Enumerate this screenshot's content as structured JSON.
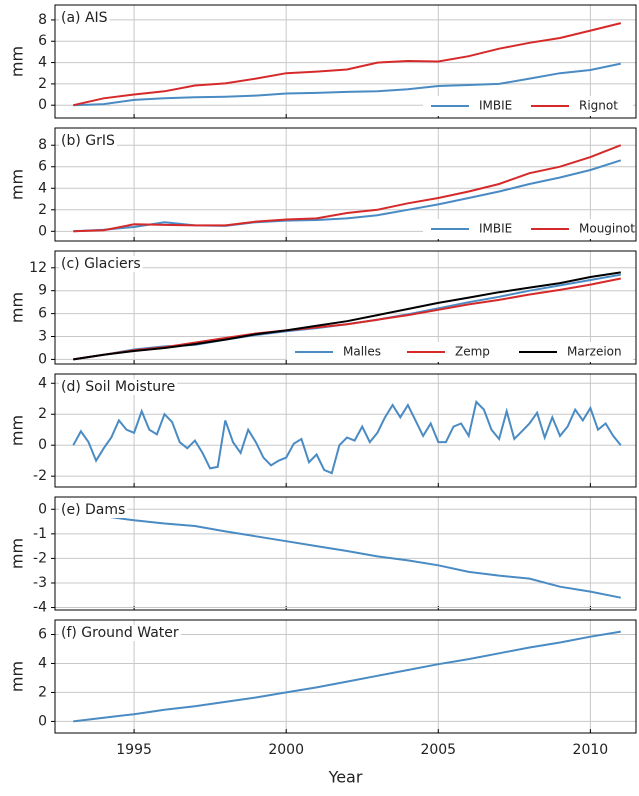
{
  "chart_data": [
    {
      "type": "line",
      "label": "(a) AIS",
      "ylabel": "mm",
      "legend": "lower right",
      "grid": true,
      "x": [
        1993,
        1994,
        1995,
        1996,
        1997,
        1998,
        1999,
        2000,
        2001,
        2002,
        2003,
        2004,
        2005,
        2006,
        2007,
        2008,
        2009,
        2010,
        2011
      ],
      "xlim": [
        1992.4,
        2011.5
      ],
      "xticks": [
        1995,
        2000,
        2005,
        2010
      ],
      "ylim": [
        -1.2,
        9.4
      ],
      "yticks": [
        0,
        2,
        4,
        6,
        8
      ],
      "series": [
        {
          "name": "IMBIE",
          "color": "#4a8bc4",
          "values": [
            0,
            0.1,
            0.5,
            0.65,
            0.75,
            0.8,
            0.9,
            1.1,
            1.15,
            1.25,
            1.3,
            1.5,
            1.8,
            1.9,
            2.0,
            2.5,
            3.0,
            3.3,
            3.9
          ]
        },
        {
          "name": "Rignot",
          "color": "#d62a2a",
          "values": [
            0,
            0.65,
            1.0,
            1.3,
            1.85,
            2.05,
            2.5,
            3.0,
            3.15,
            3.35,
            4.0,
            4.15,
            4.1,
            4.6,
            5.3,
            5.85,
            6.3,
            7.0,
            7.7
          ]
        }
      ]
    },
    {
      "type": "line",
      "label": "(b) GrIS",
      "ylabel": "mm",
      "legend": "lower right",
      "grid": true,
      "x": [
        1993,
        1994,
        1995,
        1996,
        1997,
        1998,
        1999,
        2000,
        2001,
        2002,
        2003,
        2004,
        2005,
        2006,
        2007,
        2008,
        2009,
        2010,
        2011
      ],
      "xlim": [
        1992.4,
        2011.5
      ],
      "xticks": [
        1995,
        2000,
        2005,
        2010
      ],
      "ylim": [
        -0.9,
        9.6
      ],
      "yticks": [
        0,
        2,
        4,
        6,
        8
      ],
      "series": [
        {
          "name": "IMBIE",
          "color": "#4a8bc4",
          "values": [
            0,
            0.15,
            0.4,
            0.85,
            0.55,
            0.5,
            0.85,
            1.0,
            1.05,
            1.2,
            1.5,
            2.0,
            2.5,
            3.1,
            3.7,
            4.4,
            5.0,
            5.7,
            6.6
          ]
        },
        {
          "name": "Mouginot",
          "color": "#d62a2a",
          "values": [
            0,
            0.1,
            0.65,
            0.6,
            0.55,
            0.55,
            0.9,
            1.1,
            1.2,
            1.7,
            2.0,
            2.6,
            3.1,
            3.7,
            4.4,
            5.4,
            6.0,
            6.9,
            8.0
          ]
        }
      ]
    },
    {
      "type": "line",
      "label": "(c) Glaciers",
      "ylabel": "mm",
      "legend": "lower right",
      "grid": true,
      "x": [
        1993,
        1994,
        1995,
        1996,
        1997,
        1998,
        1999,
        2000,
        2001,
        2002,
        2003,
        2004,
        2005,
        2006,
        2007,
        2008,
        2009,
        2010,
        2011
      ],
      "xlim": [
        1992.4,
        2011.5
      ],
      "xticks": [
        1995,
        2000,
        2005,
        2010
      ],
      "ylim": [
        -0.6,
        14.2
      ],
      "yticks": [
        0,
        3,
        6,
        9,
        12
      ],
      "series": [
        {
          "name": "Malles",
          "color": "#4a8bc4",
          "values": [
            0,
            0.6,
            1.3,
            1.7,
            1.9,
            2.6,
            3.2,
            3.7,
            4.1,
            4.6,
            5.2,
            5.9,
            6.7,
            7.5,
            8.2,
            9.0,
            9.7,
            10.4,
            11.1
          ]
        },
        {
          "name": "Zemp",
          "color": "#d62a2a",
          "values": [
            0,
            0.6,
            1.2,
            1.6,
            2.2,
            2.8,
            3.4,
            3.8,
            4.2,
            4.6,
            5.2,
            5.8,
            6.5,
            7.2,
            7.8,
            8.5,
            9.1,
            9.8,
            10.6
          ]
        },
        {
          "name": "Marzeion",
          "color": "#000000",
          "values": [
            0,
            0.6,
            1.1,
            1.5,
            2.0,
            2.6,
            3.3,
            3.8,
            4.4,
            5.0,
            5.8,
            6.6,
            7.4,
            8.1,
            8.8,
            9.4,
            10.0,
            10.8,
            11.4
          ]
        }
      ]
    },
    {
      "type": "line",
      "label": "(d) Soil Moisture",
      "ylabel": "mm",
      "grid": true,
      "x": [
        1993,
        1993.25,
        1993.5,
        1993.75,
        1994,
        1994.25,
        1994.5,
        1994.75,
        1995,
        1995.25,
        1995.5,
        1995.75,
        1996,
        1996.25,
        1996.5,
        1996.75,
        1997,
        1997.25,
        1997.5,
        1997.75,
        1998,
        1998.25,
        1998.5,
        1998.75,
        1999,
        1999.25,
        1999.5,
        1999.75,
        2000,
        2000.25,
        2000.5,
        2000.75,
        2001,
        2001.25,
        2001.5,
        2001.75,
        2002,
        2002.25,
        2002.5,
        2002.75,
        2003,
        2003.25,
        2003.5,
        2003.75,
        2004,
        2004.25,
        2004.5,
        2004.75,
        2005,
        2005.25,
        2005.5,
        2005.75,
        2006,
        2006.25,
        2006.5,
        2006.75,
        2007,
        2007.25,
        2007.5,
        2007.75,
        2008,
        2008.25,
        2008.5,
        2008.75,
        2009,
        2009.25,
        2009.5,
        2009.75,
        2010,
        2010.25,
        2010.5,
        2010.75,
        2011
      ],
      "xlim": [
        1992.4,
        2011.5
      ],
      "xticks": [
        1995,
        2000,
        2005,
        2010
      ],
      "ylim": [
        -2.7,
        4.6
      ],
      "yticks": [
        -2,
        0,
        2,
        4
      ],
      "series": [
        {
          "name": "Soil Moisture",
          "color": "#4a8bc4",
          "values": [
            0,
            0.9,
            0.2,
            -1.0,
            -0.2,
            0.5,
            1.6,
            1.0,
            0.8,
            2.2,
            1.0,
            0.7,
            2.0,
            1.5,
            0.2,
            -0.2,
            0.3,
            -0.5,
            -1.5,
            -1.4,
            1.6,
            0.2,
            -0.5,
            1.0,
            0.2,
            -0.8,
            -1.3,
            -1.0,
            -0.8,
            0.1,
            0.4,
            -1.1,
            -0.6,
            -1.6,
            -1.8,
            0.0,
            0.5,
            0.3,
            1.2,
            0.2,
            0.8,
            1.8,
            2.6,
            1.8,
            2.6,
            1.6,
            0.6,
            1.4,
            0.2,
            0.2,
            1.2,
            1.4,
            0.6,
            2.8,
            2.3,
            1.0,
            0.4,
            2.2,
            0.4,
            0.9,
            1.4,
            2.1,
            0.5,
            1.8,
            0.6,
            1.2,
            2.3,
            1.6,
            2.4,
            1.0,
            1.4,
            0.6,
            0.0
          ]
        }
      ]
    },
    {
      "type": "line",
      "label": "(e) Dams",
      "ylabel": "mm",
      "grid": true,
      "x": [
        1993,
        1994,
        1995,
        1996,
        1997,
        1998,
        1999,
        2000,
        2001,
        2002,
        2003,
        2004,
        2005,
        2006,
        2007,
        2008,
        2009,
        2010,
        2011
      ],
      "xlim": [
        1992.4,
        2011.5
      ],
      "xticks": [
        1995,
        2000,
        2005,
        2010
      ],
      "ylim": [
        -4.1,
        0.5
      ],
      "yticks": [
        0,
        -1,
        -2,
        -3,
        -4
      ],
      "series": [
        {
          "name": "Dams",
          "color": "#4a8bc4",
          "values": [
            0,
            -0.28,
            -0.45,
            -0.58,
            -0.68,
            -0.9,
            -1.1,
            -1.3,
            -1.5,
            -1.7,
            -1.92,
            -2.08,
            -2.28,
            -2.55,
            -2.7,
            -2.82,
            -3.15,
            -3.35,
            -3.6
          ]
        }
      ]
    },
    {
      "type": "line",
      "label": "(f) Ground Water",
      "ylabel": "mm",
      "xlabel": "Year",
      "grid": true,
      "x": [
        1993,
        1994,
        1995,
        1996,
        1997,
        1998,
        1999,
        2000,
        2001,
        2002,
        2003,
        2004,
        2005,
        2006,
        2007,
        2008,
        2009,
        2010,
        2011
      ],
      "xlim": [
        1992.4,
        2011.5
      ],
      "xticks": [
        1995,
        2000,
        2005,
        2010
      ],
      "ylim": [
        -0.8,
        7.0
      ],
      "yticks": [
        0,
        2,
        4,
        6
      ],
      "series": [
        {
          "name": "Ground Water",
          "color": "#4a8bc4",
          "values": [
            0,
            0.25,
            0.5,
            0.8,
            1.05,
            1.35,
            1.65,
            2.0,
            2.35,
            2.75,
            3.15,
            3.55,
            3.95,
            4.3,
            4.7,
            5.1,
            5.45,
            5.85,
            6.2
          ]
        }
      ]
    }
  ]
}
